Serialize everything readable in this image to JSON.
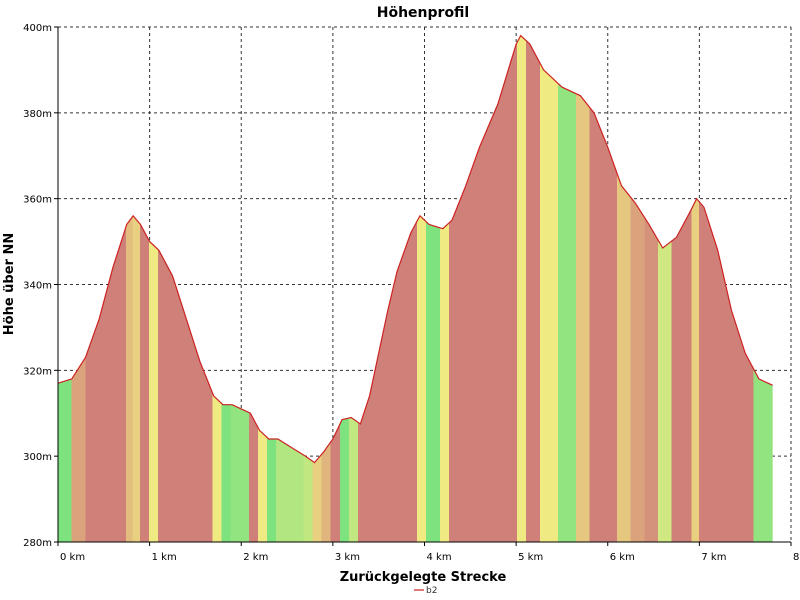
{
  "chart_data": {
    "type": "area",
    "title": "Höhenprofil",
    "xlabel": "Zurückgelegte Strecke",
    "ylabel": "Höhe über NN",
    "xlim": [
      0,
      8
    ],
    "ylim": [
      280,
      400
    ],
    "x_ticks": [
      0,
      1,
      2,
      3,
      4,
      5,
      6,
      7,
      8
    ],
    "x_tick_labels": [
      "0 km",
      "1 km",
      "2 km",
      "3 km",
      "4 km",
      "5 km",
      "6 km",
      "7 km",
      "8 km"
    ],
    "y_ticks": [
      280,
      300,
      320,
      340,
      360,
      380,
      400
    ],
    "y_tick_labels": [
      "280m",
      "300m",
      "320m",
      "340m",
      "360m",
      "380m",
      "400m"
    ],
    "grid": true,
    "legend_position": "bottom-center",
    "series": [
      {
        "name": "b2",
        "color": "#cc2222",
        "x": [
          0,
          0.15,
          0.3,
          0.45,
          0.6,
          0.75,
          0.82,
          0.9,
          1.0,
          1.1,
          1.25,
          1.4,
          1.55,
          1.7,
          1.8,
          1.9,
          2.0,
          2.1,
          2.2,
          2.3,
          2.4,
          2.55,
          2.7,
          2.8,
          2.9,
          3.0,
          3.1,
          3.2,
          3.3,
          3.4,
          3.5,
          3.6,
          3.7,
          3.85,
          3.95,
          4.05,
          4.2,
          4.3,
          4.45,
          4.6,
          4.8,
          5.0,
          5.05,
          5.15,
          5.3,
          5.5,
          5.7,
          5.85,
          6.0,
          6.15,
          6.3,
          6.45,
          6.6,
          6.75,
          6.9,
          6.97,
          7.05,
          7.2,
          7.35,
          7.5,
          7.65,
          7.8
        ],
        "values": [
          317,
          318,
          323,
          332,
          344,
          354,
          356,
          354,
          350,
          348,
          342,
          332,
          322,
          314,
          312,
          312,
          311,
          310,
          306,
          304,
          304,
          302,
          300,
          298.5,
          301,
          304,
          308.5,
          309,
          307.5,
          314,
          324,
          334,
          343,
          352,
          356,
          354,
          353,
          355,
          363,
          372,
          382,
          396,
          398,
          396,
          390,
          386,
          384,
          380,
          372,
          363,
          359,
          354,
          348.5,
          351,
          357,
          360,
          358,
          348,
          334,
          324,
          318,
          316.5
        ]
      }
    ],
    "fill_colors": {
      "flat": "#7ee37e",
      "moderate": "#f0ea82",
      "steep": "#cf8079"
    }
  }
}
